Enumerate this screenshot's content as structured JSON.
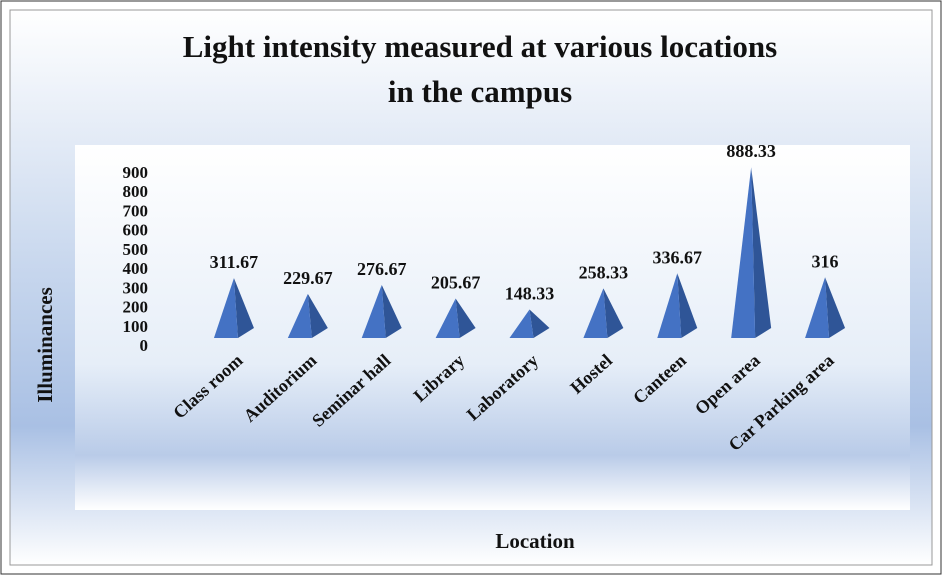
{
  "chart_data": {
    "type": "pyramid",
    "title": "Light intensity measured at various locations",
    "subtitle": "in the campus",
    "x_label": "Location",
    "y_label": "Illuminances",
    "categories": [
      "Class room",
      "Auditorium",
      "Seminar hall",
      "Library",
      "Laboratory",
      "Hostel",
      "Canteen",
      "Open area",
      "Car Parking area"
    ],
    "values": [
      311.67,
      229.67,
      276.67,
      205.67,
      148.33,
      258.33,
      336.67,
      888.33,
      316
    ],
    "color": "#4472c4",
    "ylim": [
      0,
      900
    ],
    "yticks": [
      0,
      100,
      200,
      300,
      400,
      500,
      600,
      700,
      800,
      900
    ],
    "grid": false
  }
}
